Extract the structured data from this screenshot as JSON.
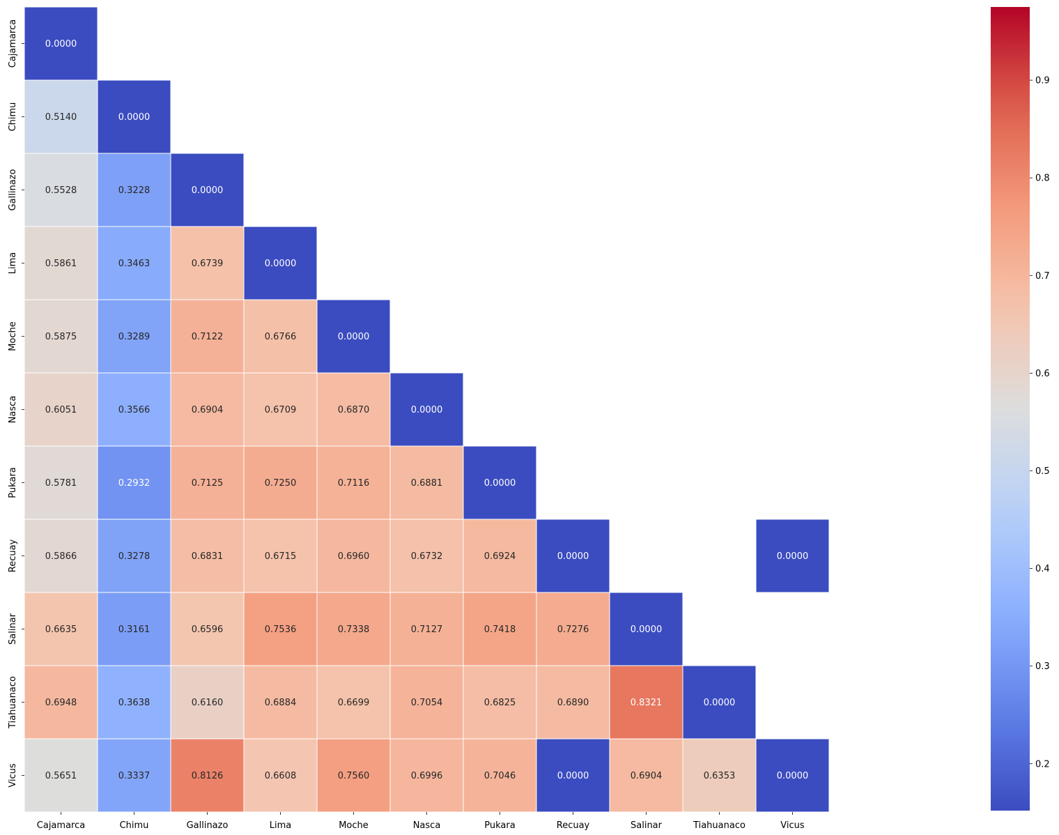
{
  "chart_data": {
    "type": "heatmap",
    "title": "",
    "xlabel": "",
    "ylabel": "",
    "colormap": "coolwarm",
    "colorbar_range": [
      0.152,
      0.975
    ],
    "colorbar_ticks": [
      "0.2",
      "0.3",
      "0.4",
      "0.5",
      "0.6",
      "0.7",
      "0.8",
      "0.9"
    ],
    "colorbar_tick_values": [
      0.2,
      0.3,
      0.4,
      0.5,
      0.6,
      0.7,
      0.8,
      0.9
    ],
    "labels": [
      "Cajamarca",
      "Chimu",
      "Gallinazo",
      "Lima",
      "Moche",
      "Nasca",
      "Pukara",
      "Recuay",
      "Salinar",
      "Tiahuanaco",
      "Vicus"
    ],
    "cells": [
      {
        "row": 0,
        "col": 0,
        "value": 0.0,
        "text": "0.0000"
      },
      {
        "row": 1,
        "col": 0,
        "value": 0.514,
        "text": "0.5140"
      },
      {
        "row": 1,
        "col": 1,
        "value": 0.0,
        "text": "0.0000"
      },
      {
        "row": 2,
        "col": 0,
        "value": 0.5528,
        "text": "0.5528"
      },
      {
        "row": 2,
        "col": 1,
        "value": 0.3228,
        "text": "0.3228"
      },
      {
        "row": 2,
        "col": 2,
        "value": 0.0,
        "text": "0.0000"
      },
      {
        "row": 3,
        "col": 0,
        "value": 0.5861,
        "text": "0.5861"
      },
      {
        "row": 3,
        "col": 1,
        "value": 0.3463,
        "text": "0.3463"
      },
      {
        "row": 3,
        "col": 2,
        "value": 0.6739,
        "text": "0.6739"
      },
      {
        "row": 3,
        "col": 3,
        "value": 0.0,
        "text": "0.0000"
      },
      {
        "row": 4,
        "col": 0,
        "value": 0.5875,
        "text": "0.5875"
      },
      {
        "row": 4,
        "col": 1,
        "value": 0.3289,
        "text": "0.3289"
      },
      {
        "row": 4,
        "col": 2,
        "value": 0.7122,
        "text": "0.7122"
      },
      {
        "row": 4,
        "col": 3,
        "value": 0.6766,
        "text": "0.6766"
      },
      {
        "row": 4,
        "col": 4,
        "value": 0.0,
        "text": "0.0000"
      },
      {
        "row": 5,
        "col": 0,
        "value": 0.6051,
        "text": "0.6051"
      },
      {
        "row": 5,
        "col": 1,
        "value": 0.3566,
        "text": "0.3566"
      },
      {
        "row": 5,
        "col": 2,
        "value": 0.6904,
        "text": "0.6904"
      },
      {
        "row": 5,
        "col": 3,
        "value": 0.6709,
        "text": "0.6709"
      },
      {
        "row": 5,
        "col": 4,
        "value": 0.687,
        "text": "0.6870"
      },
      {
        "row": 5,
        "col": 5,
        "value": 0.0,
        "text": "0.0000"
      },
      {
        "row": 6,
        "col": 0,
        "value": 0.5781,
        "text": "0.5781"
      },
      {
        "row": 6,
        "col": 1,
        "value": 0.2932,
        "text": "0.2932"
      },
      {
        "row": 6,
        "col": 2,
        "value": 0.7125,
        "text": "0.7125"
      },
      {
        "row": 6,
        "col": 3,
        "value": 0.725,
        "text": "0.7250"
      },
      {
        "row": 6,
        "col": 4,
        "value": 0.7116,
        "text": "0.7116"
      },
      {
        "row": 6,
        "col": 5,
        "value": 0.6881,
        "text": "0.6881"
      },
      {
        "row": 6,
        "col": 6,
        "value": 0.0,
        "text": "0.0000"
      },
      {
        "row": 7,
        "col": 0,
        "value": 0.5866,
        "text": "0.5866"
      },
      {
        "row": 7,
        "col": 1,
        "value": 0.3278,
        "text": "0.3278"
      },
      {
        "row": 7,
        "col": 2,
        "value": 0.6831,
        "text": "0.6831"
      },
      {
        "row": 7,
        "col": 3,
        "value": 0.6715,
        "text": "0.6715"
      },
      {
        "row": 7,
        "col": 4,
        "value": 0.696,
        "text": "0.6960"
      },
      {
        "row": 7,
        "col": 5,
        "value": 0.6732,
        "text": "0.6732"
      },
      {
        "row": 7,
        "col": 6,
        "value": 0.6924,
        "text": "0.6924"
      },
      {
        "row": 7,
        "col": 7,
        "value": 0.0,
        "text": "0.0000"
      },
      {
        "row": 7,
        "col": 10,
        "value": 0.0,
        "text": "0.0000"
      },
      {
        "row": 8,
        "col": 0,
        "value": 0.6635,
        "text": "0.6635"
      },
      {
        "row": 8,
        "col": 1,
        "value": 0.3161,
        "text": "0.3161"
      },
      {
        "row": 8,
        "col": 2,
        "value": 0.6596,
        "text": "0.6596"
      },
      {
        "row": 8,
        "col": 3,
        "value": 0.7536,
        "text": "0.7536"
      },
      {
        "row": 8,
        "col": 4,
        "value": 0.7338,
        "text": "0.7338"
      },
      {
        "row": 8,
        "col": 5,
        "value": 0.7127,
        "text": "0.7127"
      },
      {
        "row": 8,
        "col": 6,
        "value": 0.7418,
        "text": "0.7418"
      },
      {
        "row": 8,
        "col": 7,
        "value": 0.7276,
        "text": "0.7276"
      },
      {
        "row": 8,
        "col": 8,
        "value": 0.0,
        "text": "0.0000"
      },
      {
        "row": 9,
        "col": 0,
        "value": 0.6948,
        "text": "0.6948"
      },
      {
        "row": 9,
        "col": 1,
        "value": 0.3638,
        "text": "0.3638"
      },
      {
        "row": 9,
        "col": 2,
        "value": 0.616,
        "text": "0.6160"
      },
      {
        "row": 9,
        "col": 3,
        "value": 0.6884,
        "text": "0.6884"
      },
      {
        "row": 9,
        "col": 4,
        "value": 0.6699,
        "text": "0.6699"
      },
      {
        "row": 9,
        "col": 5,
        "value": 0.7054,
        "text": "0.7054"
      },
      {
        "row": 9,
        "col": 6,
        "value": 0.6825,
        "text": "0.6825"
      },
      {
        "row": 9,
        "col": 7,
        "value": 0.689,
        "text": "0.6890"
      },
      {
        "row": 9,
        "col": 8,
        "value": 0.8321,
        "text": "0.8321"
      },
      {
        "row": 9,
        "col": 9,
        "value": 0.0,
        "text": "0.0000"
      },
      {
        "row": 10,
        "col": 0,
        "value": 0.5651,
        "text": "0.5651"
      },
      {
        "row": 10,
        "col": 1,
        "value": 0.3337,
        "text": "0.3337"
      },
      {
        "row": 10,
        "col": 2,
        "value": 0.8126,
        "text": "0.8126"
      },
      {
        "row": 10,
        "col": 3,
        "value": 0.6608,
        "text": "0.6608"
      },
      {
        "row": 10,
        "col": 4,
        "value": 0.756,
        "text": "0.7560"
      },
      {
        "row": 10,
        "col": 5,
        "value": 0.6996,
        "text": "0.6996"
      },
      {
        "row": 10,
        "col": 6,
        "value": 0.7046,
        "text": "0.7046"
      },
      {
        "row": 10,
        "col": 7,
        "value": 0.0,
        "text": "0.0000"
      },
      {
        "row": 10,
        "col": 8,
        "value": 0.6904,
        "text": "0.6904"
      },
      {
        "row": 10,
        "col": 9,
        "value": 0.6353,
        "text": "0.6353"
      },
      {
        "row": 10,
        "col": 10,
        "value": 0.0,
        "text": "0.0000"
      }
    ]
  }
}
